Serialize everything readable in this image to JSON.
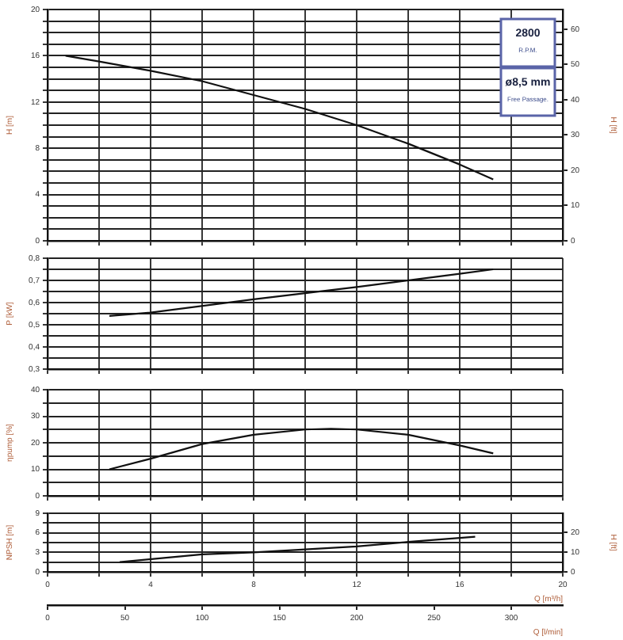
{
  "chart_data": [
    {
      "type": "line",
      "ylabel": "H [m]",
      "y2label": "H [ft]",
      "x": [
        0.7,
        2,
        4,
        6,
        8,
        10,
        12,
        14,
        16,
        17.3
      ],
      "values": [
        16,
        15.5,
        14.7,
        13.8,
        12.6,
        11.4,
        10,
        8.4,
        6.6,
        5.3
      ],
      "color": "#111111",
      "xlim": [
        0,
        20
      ],
      "xticks": [
        0,
        {
          "value": 2,
          "label": null
        },
        4,
        {
          "value": 6,
          "label": null
        },
        8,
        {
          "value": 10,
          "label": null
        },
        12,
        {
          "value": 14,
          "label": null
        },
        16,
        {
          "value": 18,
          "label": null
        },
        20
      ],
      "ylim": [
        0,
        20
      ],
      "yticks": [
        0,
        {
          "value": 1,
          "label": null
        },
        {
          "value": 2,
          "label": null
        },
        {
          "value": 3,
          "label": null
        },
        4,
        {
          "value": 5,
          "label": null
        },
        {
          "value": 6,
          "label": null
        },
        {
          "value": 7,
          "label": null
        },
        8,
        {
          "value": 9,
          "label": null
        },
        {
          "value": 10,
          "label": null
        },
        {
          "value": 11,
          "label": null
        },
        12,
        {
          "value": 13,
          "label": null
        },
        {
          "value": 14,
          "label": null
        },
        {
          "value": 15,
          "label": null
        },
        16,
        {
          "value": 17,
          "label": null
        },
        {
          "value": 18,
          "label": null
        },
        {
          "value": 19,
          "label": null
        },
        20
      ],
      "y2lim": [
        0,
        65.6
      ],
      "y2ticks": [
        0,
        10,
        20,
        30,
        40,
        50,
        60
      ],
      "grid": true,
      "tick_labels": "y",
      "annotations": [
        "2800",
        "R.P.M.",
        "ø8,5 mm",
        "Free Passage."
      ]
    },
    {
      "type": "line",
      "ylabel": "P [kW]",
      "x": [
        2.4,
        4,
        8,
        12,
        16,
        17.3
      ],
      "values": [
        0.54,
        0.555,
        0.615,
        0.67,
        0.73,
        0.75
      ],
      "color": "#111111",
      "xlim": [
        0,
        20
      ],
      "xticks": [
        0,
        {
          "value": 2,
          "label": null
        },
        4,
        {
          "value": 6,
          "label": null
        },
        8,
        {
          "value": 10,
          "label": null
        },
        12,
        {
          "value": 14,
          "label": null
        },
        16,
        {
          "value": 18,
          "label": null
        },
        20
      ],
      "ylim": [
        0.3,
        0.8
      ],
      "yticks": [
        {
          "value": 0.3,
          "label": "0,3"
        },
        {
          "value": 0.35,
          "label": null
        },
        {
          "value": 0.4,
          "label": "0,4"
        },
        {
          "value": 0.45,
          "label": null
        },
        {
          "value": 0.5,
          "label": "0,5"
        },
        {
          "value": 0.55,
          "label": null
        },
        {
          "value": 0.6,
          "label": "0,6"
        },
        {
          "value": 0.65,
          "label": null
        },
        {
          "value": 0.7,
          "label": "0,7"
        },
        {
          "value": 0.75,
          "label": null
        },
        {
          "value": 0.8,
          "label": "0,8"
        }
      ],
      "grid": true,
      "tick_labels": "y"
    },
    {
      "type": "line",
      "ylabel": "ηpump [%]",
      "x": [
        2.4,
        4,
        6,
        8,
        10,
        11,
        12,
        14,
        16,
        17.3
      ],
      "values": [
        10,
        14,
        19.5,
        23,
        25,
        25.3,
        25,
        23,
        19,
        16
      ],
      "color": "#111111",
      "xlim": [
        0,
        20
      ],
      "xticks": [
        0,
        {
          "value": 2,
          "label": null
        },
        4,
        {
          "value": 6,
          "label": null
        },
        8,
        {
          "value": 10,
          "label": null
        },
        12,
        {
          "value": 14,
          "label": null
        },
        16,
        {
          "value": 18,
          "label": null
        },
        20
      ],
      "ylim": [
        0,
        40
      ],
      "yticks": [
        0,
        {
          "value": 5,
          "label": null
        },
        10,
        {
          "value": 15,
          "label": null
        },
        20,
        {
          "value": 25,
          "label": null
        },
        30,
        {
          "value": 35,
          "label": null
        },
        40
      ],
      "grid": true,
      "tick_labels": "y"
    },
    {
      "type": "line",
      "ylabel": "NPSH [m]",
      "y2label": "H [ft]",
      "xlabel": "Q [m³/h]",
      "x2label": "Q [l/min]",
      "x": [
        2.8,
        6,
        8,
        12,
        14,
        16.6
      ],
      "values": [
        1.5,
        2.7,
        3.0,
        3.9,
        4.6,
        5.4
      ],
      "color": "#111111",
      "xlim": [
        0,
        20
      ],
      "xticks": [
        0,
        {
          "value": 2,
          "label": null
        },
        4,
        {
          "value": 6,
          "label": null
        },
        8,
        {
          "value": 10,
          "label": null
        },
        12,
        {
          "value": 14,
          "label": null
        },
        16,
        {
          "value": 18,
          "label": null
        },
        20
      ],
      "ylim": [
        0,
        9
      ],
      "yticks": [
        0,
        {
          "value": 1.5,
          "label": null
        },
        3,
        {
          "value": 4.5,
          "label": null
        },
        6,
        {
          "value": 7.5,
          "label": null
        },
        9
      ],
      "y2lim": [
        0,
        29.5
      ],
      "y2ticks": [
        0,
        10,
        20
      ],
      "x2lim": [
        0,
        333.3
      ],
      "x2ticks": [
        0,
        50,
        100,
        150,
        200,
        250,
        300
      ],
      "grid": true
    }
  ]
}
